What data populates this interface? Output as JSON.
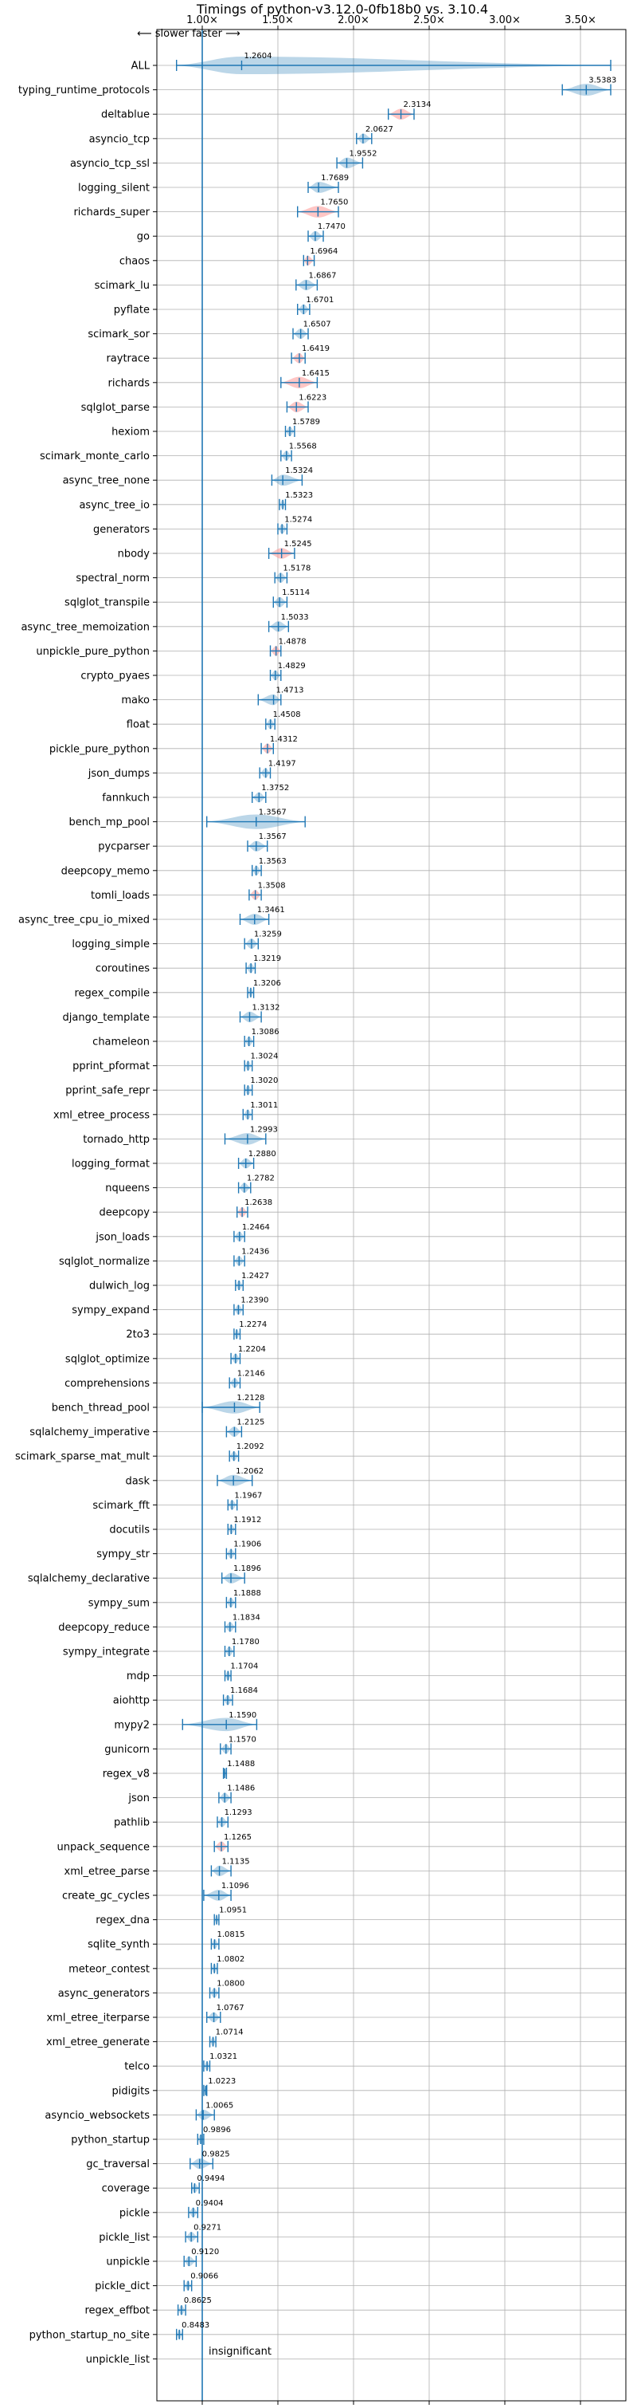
{
  "chart_data": {
    "type": "violin",
    "title": "Timings of python-v3.12.0-0fb18b0 vs. 3.10.4",
    "xlim": [
      0.7,
      3.8
    ],
    "x_ticks": [
      1.0,
      1.5,
      2.0,
      2.5,
      3.0,
      3.5
    ],
    "x_tick_labels": [
      "1.00×",
      "1.50×",
      "2.00×",
      "2.50×",
      "3.00×",
      "3.50×"
    ],
    "direction_note": "⟵ slower   faster ⟶",
    "reference_line": 1.0,
    "insignificant_label": "insignificant",
    "grid": true,
    "colors": {
      "violin": "#1f77b4",
      "significant_highlight": "#ff9896",
      "reference": "#1f77b4",
      "grid": "#b0b0b0"
    },
    "categories": [
      "ALL",
      "typing_runtime_protocols",
      "deltablue",
      "asyncio_tcp",
      "asyncio_tcp_ssl",
      "logging_silent",
      "richards_super",
      "go",
      "chaos",
      "scimark_lu",
      "pyflate",
      "scimark_sor",
      "raytrace",
      "richards",
      "sqlglot_parse",
      "hexiom",
      "scimark_monte_carlo",
      "async_tree_none",
      "async_tree_io",
      "generators",
      "nbody",
      "spectral_norm",
      "sqlglot_transpile",
      "async_tree_memoization",
      "unpickle_pure_python",
      "crypto_pyaes",
      "mako",
      "float",
      "pickle_pure_python",
      "json_dumps",
      "fannkuch",
      "bench_mp_pool",
      "pycparser",
      "deepcopy_memo",
      "tomli_loads",
      "async_tree_cpu_io_mixed",
      "logging_simple",
      "coroutines",
      "regex_compile",
      "django_template",
      "chameleon",
      "pprint_pformat",
      "pprint_safe_repr",
      "xml_etree_process",
      "tornado_http",
      "logging_format",
      "nqueens",
      "deepcopy",
      "json_loads",
      "sqlglot_normalize",
      "dulwich_log",
      "sympy_expand",
      "2to3",
      "sqlglot_optimize",
      "comprehensions",
      "bench_thread_pool",
      "sqlalchemy_imperative",
      "scimark_sparse_mat_mult",
      "dask",
      "scimark_fft",
      "docutils",
      "sympy_str",
      "sqlalchemy_declarative",
      "sympy_sum",
      "deepcopy_reduce",
      "sympy_integrate",
      "mdp",
      "aiohttp",
      "mypy2",
      "gunicorn",
      "regex_v8",
      "json",
      "pathlib",
      "unpack_sequence",
      "xml_etree_parse",
      "create_gc_cycles",
      "regex_dna",
      "sqlite_synth",
      "meteor_contest",
      "async_generators",
      "xml_etree_iterparse",
      "xml_etree_generate",
      "telco",
      "pidigits",
      "asyncio_websockets",
      "python_startup",
      "gc_traversal",
      "coverage",
      "pickle",
      "pickle_list",
      "unpickle",
      "pickle_dict",
      "regex_effbot",
      "python_startup_no_site",
      "unpickle_list"
    ],
    "values": [
      1.2604,
      3.5383,
      2.3134,
      2.0627,
      1.9552,
      1.7689,
      1.765,
      1.747,
      1.6964,
      1.6867,
      1.6701,
      1.6507,
      1.6419,
      1.6415,
      1.6223,
      1.5789,
      1.5568,
      1.5324,
      1.5323,
      1.5274,
      1.5245,
      1.5178,
      1.5114,
      1.5033,
      1.4878,
      1.4829,
      1.4713,
      1.4508,
      1.4312,
      1.4197,
      1.3752,
      1.3567,
      1.3567,
      1.3563,
      1.3508,
      1.3461,
      1.3259,
      1.3219,
      1.3206,
      1.3132,
      1.3086,
      1.3024,
      1.302,
      1.3011,
      1.2993,
      1.288,
      1.2782,
      1.2638,
      1.2464,
      1.2436,
      1.2427,
      1.239,
      1.2274,
      1.2204,
      1.2146,
      1.2128,
      1.2125,
      1.2092,
      1.2062,
      1.1967,
      1.1912,
      1.1906,
      1.1896,
      1.1888,
      1.1834,
      1.178,
      1.1704,
      1.1684,
      1.159,
      1.157,
      1.1488,
      1.1486,
      1.1293,
      1.1265,
      1.1135,
      1.1096,
      1.0951,
      1.0815,
      1.0802,
      1.08,
      1.0767,
      1.0714,
      1.0321,
      1.0223,
      1.0065,
      0.9896,
      0.9825,
      0.9494,
      0.9404,
      0.9271,
      0.912,
      0.9066,
      0.8625,
      0.8483,
      null
    ],
    "value_labels": [
      "1.2604",
      "3.5383",
      "2.3134",
      "2.0627",
      "1.9552",
      "1.7689",
      "1.7650",
      "1.7470",
      "1.6964",
      "1.6867",
      "1.6701",
      "1.6507",
      "1.6419",
      "1.6415",
      "1.6223",
      "1.5789",
      "1.5568",
      "1.5324",
      "1.5323",
      "1.5274",
      "1.5245",
      "1.5178",
      "1.5114",
      "1.5033",
      "1.4878",
      "1.4829",
      "1.4713",
      "1.4508",
      "1.4312",
      "1.4197",
      "1.3752",
      "1.3567",
      "1.3567",
      "1.3563",
      "1.3508",
      "1.3461",
      "1.3259",
      "1.3219",
      "1.3206",
      "1.3132",
      "1.3086",
      "1.3024",
      "1.3020",
      "1.3011",
      "1.2993",
      "1.2880",
      "1.2782",
      "1.2638",
      "1.2464",
      "1.2436",
      "1.2427",
      "1.2390",
      "1.2274",
      "1.2204",
      "1.2146",
      "1.2128",
      "1.2125",
      "1.2092",
      "1.2062",
      "1.1967",
      "1.1912",
      "1.1906",
      "1.1896",
      "1.1888",
      "1.1834",
      "1.1780",
      "1.1704",
      "1.1684",
      "1.1590",
      "1.1570",
      "1.1488",
      "1.1486",
      "1.1293",
      "1.1265",
      "1.1135",
      "1.1096",
      "1.0951",
      "1.0815",
      "1.0802",
      "1.0800",
      "1.0767",
      "1.0714",
      "1.0321",
      "1.0223",
      "1.0065",
      "0.9896",
      "0.9825",
      "0.9494",
      "0.9404",
      "0.9271",
      "0.9120",
      "0.9066",
      "0.8625",
      "0.8483",
      ""
    ],
    "ranges": [
      [
        0.83,
        3.7
      ],
      [
        3.38,
        3.7
      ],
      [
        2.23,
        2.4
      ],
      [
        2.02,
        2.12
      ],
      [
        1.89,
        2.06
      ],
      [
        1.7,
        1.9
      ],
      [
        1.63,
        1.9
      ],
      [
        1.7,
        1.8
      ],
      [
        1.67,
        1.74
      ],
      [
        1.62,
        1.76
      ],
      [
        1.63,
        1.71
      ],
      [
        1.6,
        1.7
      ],
      [
        1.59,
        1.68
      ],
      [
        1.52,
        1.76
      ],
      [
        1.56,
        1.7
      ],
      [
        1.55,
        1.61
      ],
      [
        1.52,
        1.59
      ],
      [
        1.46,
        1.66
      ],
      [
        1.51,
        1.55
      ],
      [
        1.5,
        1.56
      ],
      [
        1.44,
        1.61
      ],
      [
        1.48,
        1.56
      ],
      [
        1.47,
        1.56
      ],
      [
        1.44,
        1.57
      ],
      [
        1.45,
        1.52
      ],
      [
        1.45,
        1.52
      ],
      [
        1.37,
        1.52
      ],
      [
        1.42,
        1.48
      ],
      [
        1.39,
        1.47
      ],
      [
        1.38,
        1.45
      ],
      [
        1.33,
        1.42
      ],
      [
        1.03,
        1.68
      ],
      [
        1.3,
        1.43
      ],
      [
        1.33,
        1.39
      ],
      [
        1.31,
        1.39
      ],
      [
        1.25,
        1.44
      ],
      [
        1.28,
        1.37
      ],
      [
        1.29,
        1.35
      ],
      [
        1.3,
        1.34
      ],
      [
        1.25,
        1.39
      ],
      [
        1.28,
        1.34
      ],
      [
        1.28,
        1.33
      ],
      [
        1.28,
        1.33
      ],
      [
        1.27,
        1.33
      ],
      [
        1.15,
        1.42
      ],
      [
        1.24,
        1.34
      ],
      [
        1.24,
        1.32
      ],
      [
        1.23,
        1.3
      ],
      [
        1.21,
        1.28
      ],
      [
        1.21,
        1.28
      ],
      [
        1.22,
        1.27
      ],
      [
        1.21,
        1.27
      ],
      [
        1.21,
        1.25
      ],
      [
        1.19,
        1.25
      ],
      [
        1.18,
        1.25
      ],
      [
        1.0,
        1.38
      ],
      [
        1.16,
        1.26
      ],
      [
        1.18,
        1.24
      ],
      [
        1.1,
        1.33
      ],
      [
        1.17,
        1.23
      ],
      [
        1.17,
        1.22
      ],
      [
        1.16,
        1.22
      ],
      [
        1.13,
        1.28
      ],
      [
        1.16,
        1.22
      ],
      [
        1.15,
        1.22
      ],
      [
        1.15,
        1.21
      ],
      [
        1.15,
        1.19
      ],
      [
        1.14,
        1.2
      ],
      [
        0.87,
        1.36
      ],
      [
        1.12,
        1.19
      ],
      [
        1.14,
        1.16
      ],
      [
        1.11,
        1.19
      ],
      [
        1.1,
        1.17
      ],
      [
        1.08,
        1.17
      ],
      [
        1.06,
        1.19
      ],
      [
        1.01,
        1.19
      ],
      [
        1.08,
        1.11
      ],
      [
        1.06,
        1.11
      ],
      [
        1.06,
        1.1
      ],
      [
        1.05,
        1.11
      ],
      [
        1.03,
        1.12
      ],
      [
        1.05,
        1.09
      ],
      [
        1.01,
        1.05
      ],
      [
        1.01,
        1.03
      ],
      [
        0.96,
        1.08
      ],
      [
        0.97,
        1.01
      ],
      [
        0.92,
        1.07
      ],
      [
        0.93,
        0.98
      ],
      [
        0.91,
        0.97
      ],
      [
        0.89,
        0.97
      ],
      [
        0.88,
        0.96
      ],
      [
        0.88,
        0.93
      ],
      [
        0.84,
        0.89
      ],
      [
        0.83,
        0.87
      ],
      [
        null,
        null
      ]
    ],
    "highlighted": [
      "deltablue",
      "richards_super",
      "chaos",
      "raytrace",
      "richards",
      "sqlglot_parse",
      "nbody",
      "unpickle_pure_python",
      "pickle_pure_python",
      "tomli_loads",
      "deepcopy",
      "unpack_sequence"
    ]
  }
}
